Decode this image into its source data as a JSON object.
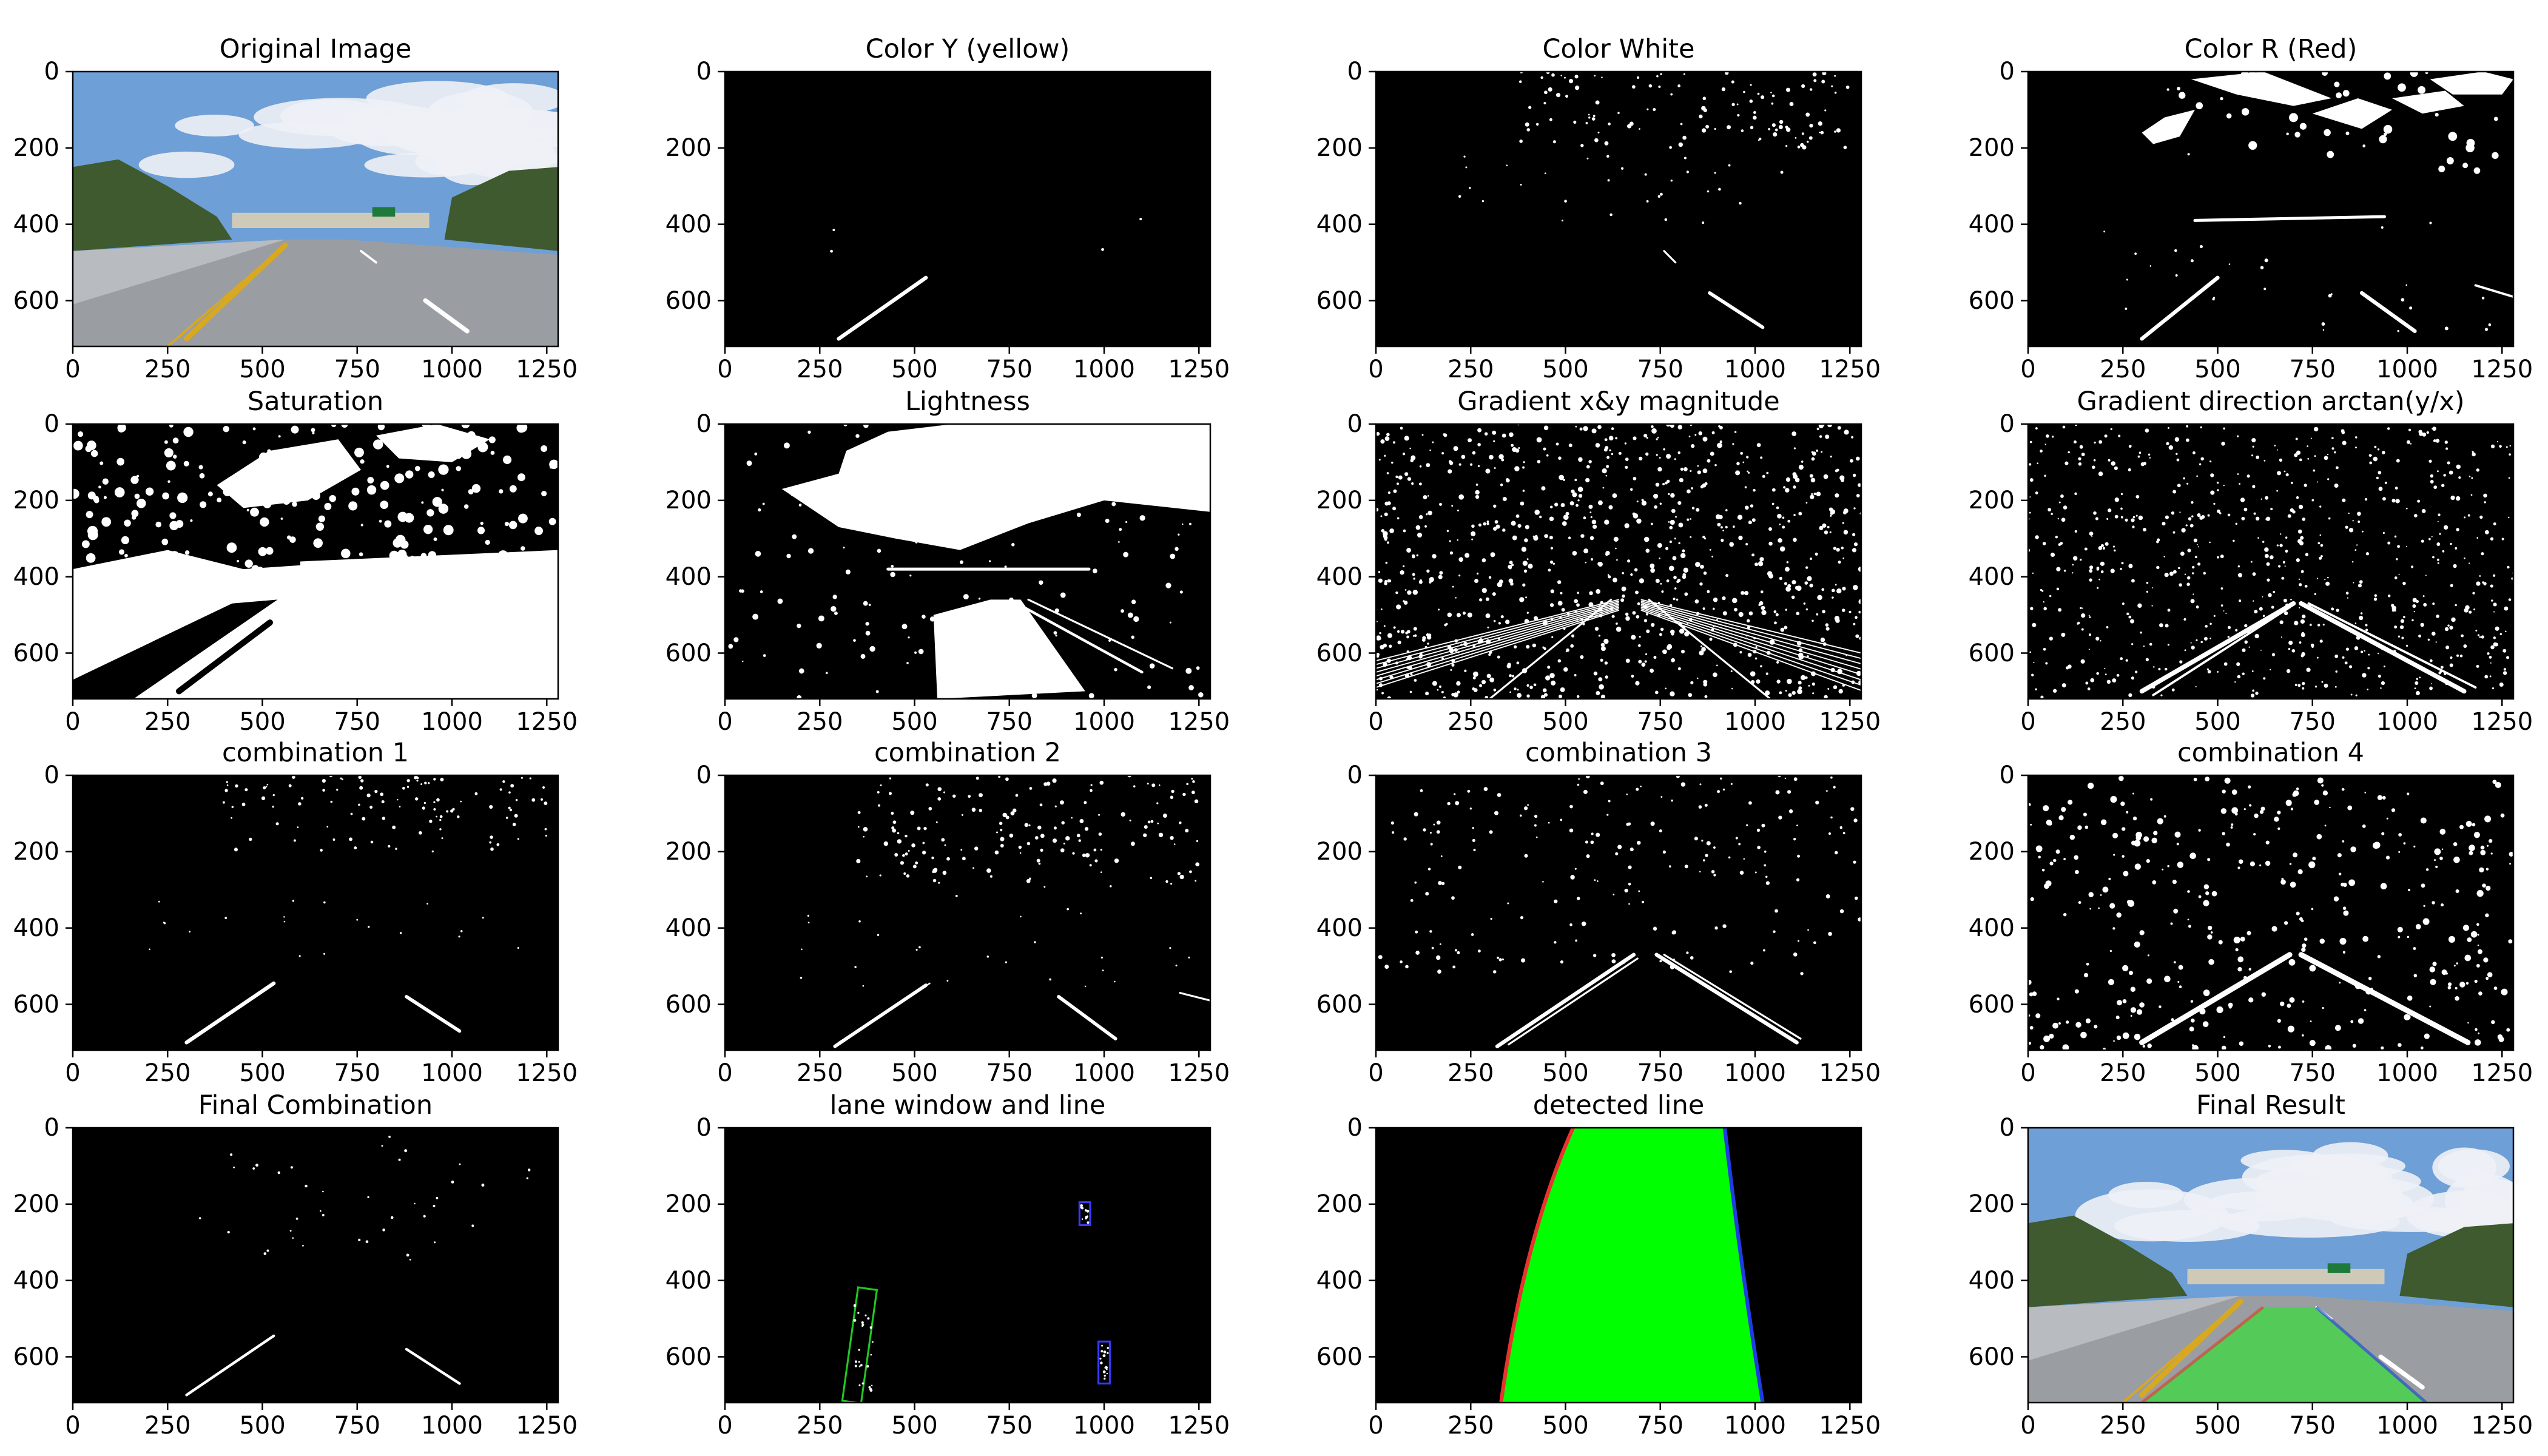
{
  "chart_data": [
    {
      "type": "image",
      "title": "Original Image",
      "image": "original-road-photo",
      "xlim": [
        0,
        1280
      ],
      "ylim": [
        720,
        0
      ],
      "xticks": [
        0,
        250,
        500,
        750,
        1000,
        1250
      ],
      "yticks": [
        0,
        200,
        400,
        600
      ]
    },
    {
      "type": "image",
      "title": "Color Y (yellow)",
      "image": "binary-mask",
      "xlim": [
        0,
        1280
      ],
      "ylim": [
        720,
        0
      ],
      "xticks": [
        0,
        250,
        500,
        750,
        1000,
        1250
      ],
      "yticks": [
        0,
        200,
        400,
        600
      ]
    },
    {
      "type": "image",
      "title": "Color White",
      "image": "binary-mask",
      "xlim": [
        0,
        1280
      ],
      "ylim": [
        720,
        0
      ],
      "xticks": [
        0,
        250,
        500,
        750,
        1000,
        1250
      ],
      "yticks": [
        0,
        200,
        400,
        600
      ]
    },
    {
      "type": "image",
      "title": "Color R (Red)",
      "image": "binary-mask",
      "xlim": [
        0,
        1280
      ],
      "ylim": [
        720,
        0
      ],
      "xticks": [
        0,
        250,
        500,
        750,
        1000,
        1250
      ],
      "yticks": [
        0,
        200,
        400,
        600
      ]
    },
    {
      "type": "image",
      "title": "Saturation",
      "image": "binary-mask",
      "xlim": [
        0,
        1280
      ],
      "ylim": [
        720,
        0
      ],
      "xticks": [
        0,
        250,
        500,
        750,
        1000,
        1250
      ],
      "yticks": [
        0,
        200,
        400,
        600
      ]
    },
    {
      "type": "image",
      "title": "Lightness",
      "image": "binary-mask",
      "xlim": [
        0,
        1280
      ],
      "ylim": [
        720,
        0
      ],
      "xticks": [
        0,
        250,
        500,
        750,
        1000,
        1250
      ],
      "yticks": [
        0,
        200,
        400,
        600
      ]
    },
    {
      "type": "image",
      "title": "Gradient x&y magnitude",
      "image": "binary-mask",
      "xlim": [
        0,
        1280
      ],
      "ylim": [
        720,
        0
      ],
      "xticks": [
        0,
        250,
        500,
        750,
        1000,
        1250
      ],
      "yticks": [
        0,
        200,
        400,
        600
      ]
    },
    {
      "type": "image",
      "title": "Gradient direction arctan(y/x)",
      "image": "binary-mask",
      "xlim": [
        0,
        1280
      ],
      "ylim": [
        720,
        0
      ],
      "xticks": [
        0,
        250,
        500,
        750,
        1000,
        1250
      ],
      "yticks": [
        0,
        200,
        400,
        600
      ]
    },
    {
      "type": "image",
      "title": "combination 1",
      "image": "binary-mask",
      "xlim": [
        0,
        1280
      ],
      "ylim": [
        720,
        0
      ],
      "xticks": [
        0,
        250,
        500,
        750,
        1000,
        1250
      ],
      "yticks": [
        0,
        200,
        400,
        600
      ]
    },
    {
      "type": "image",
      "title": "combination 2",
      "image": "binary-mask",
      "xlim": [
        0,
        1280
      ],
      "ylim": [
        720,
        0
      ],
      "xticks": [
        0,
        250,
        500,
        750,
        1000,
        1250
      ],
      "yticks": [
        0,
        200,
        400,
        600
      ]
    },
    {
      "type": "image",
      "title": "combination 3",
      "image": "binary-mask",
      "xlim": [
        0,
        1280
      ],
      "ylim": [
        720,
        0
      ],
      "xticks": [
        0,
        250,
        500,
        750,
        1000,
        1250
      ],
      "yticks": [
        0,
        200,
        400,
        600
      ]
    },
    {
      "type": "image",
      "title": "combination 4",
      "image": "binary-mask",
      "xlim": [
        0,
        1280
      ],
      "ylim": [
        720,
        0
      ],
      "xticks": [
        0,
        250,
        500,
        750,
        1000,
        1250
      ],
      "yticks": [
        0,
        200,
        400,
        600
      ]
    },
    {
      "type": "image",
      "title": "Final Combination",
      "image": "binary-mask",
      "xlim": [
        0,
        1280
      ],
      "ylim": [
        720,
        0
      ],
      "xticks": [
        0,
        250,
        500,
        750,
        1000,
        1250
      ],
      "yticks": [
        0,
        200,
        400,
        600
      ]
    },
    {
      "type": "image",
      "title": "lane window and line",
      "image": "sliding-window-mask",
      "xlim": [
        0,
        1280
      ],
      "ylim": [
        720,
        0
      ],
      "xticks": [
        0,
        250,
        500,
        750,
        1000,
        1250
      ],
      "yticks": [
        0,
        200,
        400,
        600
      ]
    },
    {
      "type": "image",
      "title": "detected line",
      "image": "lane-polygon",
      "xlim": [
        0,
        1280
      ],
      "ylim": [
        720,
        0
      ],
      "xticks": [
        0,
        250,
        500,
        750,
        1000,
        1250
      ],
      "yticks": [
        0,
        200,
        400,
        600
      ]
    },
    {
      "type": "image",
      "title": "Final Result",
      "image": "road-photo-with-lane-overlay",
      "xlim": [
        0,
        1280
      ],
      "ylim": [
        720,
        0
      ],
      "xticks": [
        0,
        250,
        500,
        750,
        1000,
        1250
      ],
      "yticks": [
        0,
        200,
        400,
        600
      ]
    }
  ],
  "colors": {
    "mask_background": "#000000",
    "mask_foreground": "#ffffff",
    "lane_fill": "#00ff00",
    "left_line": "#e8332e",
    "right_line": "#1f3ce0",
    "left_window": "#22c81f",
    "right_window": "#3a3aff",
    "sky": "#6e9fd6",
    "cloud": "#eef1f6",
    "road": "#9a9ea2",
    "yellow_line": "#d8a820",
    "vegetation": "#3e5a2e"
  }
}
